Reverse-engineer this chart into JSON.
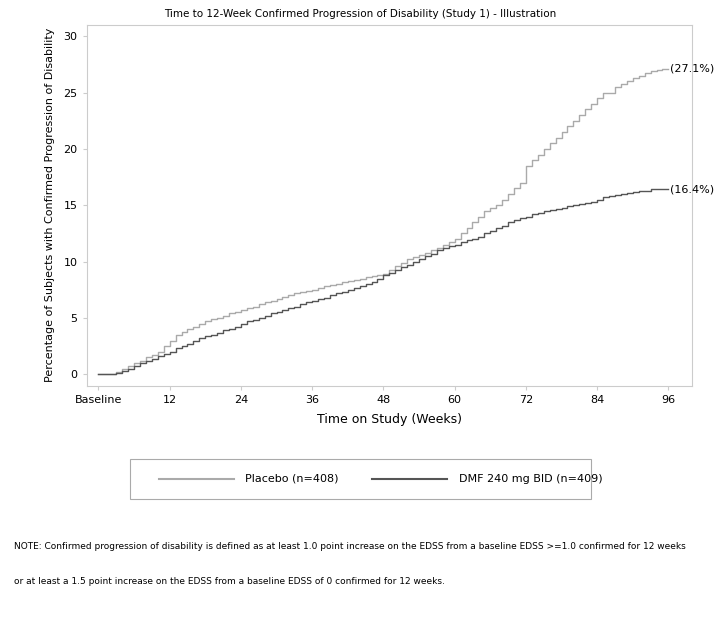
{
  "title": "Time to 12-Week Confirmed Progression of Disability (Study 1) - Illustration",
  "xlabel": "Time on Study (Weeks)",
  "ylabel": "Percentage of Subjects with Confirmed Progression of Disability",
  "xlim": [
    -2,
    100
  ],
  "ylim": [
    -1,
    31
  ],
  "yticks": [
    0,
    5,
    10,
    15,
    20,
    25,
    30
  ],
  "xtick_labels": [
    "Baseline",
    "12",
    "24",
    "36",
    "48",
    "60",
    "72",
    "84",
    "96"
  ],
  "xtick_positions": [
    0,
    12,
    24,
    36,
    48,
    60,
    72,
    84,
    96
  ],
  "placebo_label": "Placebo (n=408)",
  "dmf_label": "DMF 240 mg BID (n=409)",
  "placebo_final": "(27.1%)",
  "dmf_final": "(16.4%)",
  "placebo_color": "#aaaaaa",
  "dmf_color": "#555555",
  "note_line1": "NOTE: Confirmed progression of disability is defined as at least 1.0 point increase on the EDSS from a baseline EDSS >=1.0 confirmed for 12 weeks",
  "note_line2": "or at least a 1.5 point increase on the EDSS from a baseline EDSS of 0 confirmed for 12 weeks.",
  "placebo_x": [
    0,
    2,
    3,
    4,
    5,
    6,
    7,
    8,
    9,
    10,
    11,
    12,
    13,
    14,
    15,
    16,
    17,
    18,
    19,
    20,
    21,
    22,
    23,
    24,
    25,
    26,
    27,
    28,
    29,
    30,
    31,
    32,
    33,
    34,
    35,
    36,
    37,
    38,
    39,
    40,
    41,
    42,
    43,
    44,
    45,
    46,
    47,
    48,
    49,
    50,
    51,
    52,
    53,
    54,
    55,
    56,
    57,
    58,
    59,
    60,
    61,
    62,
    63,
    64,
    65,
    66,
    67,
    68,
    69,
    70,
    71,
    72,
    73,
    74,
    75,
    76,
    77,
    78,
    79,
    80,
    81,
    82,
    83,
    84,
    85,
    86,
    87,
    88,
    89,
    90,
    91,
    92,
    93,
    94,
    95,
    96
  ],
  "placebo_y": [
    0,
    0,
    0.2,
    0.5,
    0.7,
    1.0,
    1.2,
    1.5,
    1.7,
    2.0,
    2.5,
    3.0,
    3.5,
    3.8,
    4.0,
    4.2,
    4.5,
    4.7,
    4.9,
    5.0,
    5.2,
    5.4,
    5.5,
    5.7,
    5.9,
    6.0,
    6.2,
    6.4,
    6.5,
    6.7,
    6.9,
    7.0,
    7.2,
    7.3,
    7.4,
    7.5,
    7.7,
    7.8,
    7.9,
    8.0,
    8.2,
    8.3,
    8.4,
    8.5,
    8.6,
    8.7,
    8.8,
    8.9,
    9.3,
    9.6,
    9.9,
    10.2,
    10.4,
    10.6,
    10.8,
    11.0,
    11.2,
    11.5,
    11.7,
    12.0,
    12.5,
    13.0,
    13.5,
    14.0,
    14.5,
    14.8,
    15.0,
    15.5,
    16.0,
    16.5,
    17.0,
    18.5,
    19.0,
    19.5,
    20.0,
    20.5,
    21.0,
    21.5,
    22.0,
    22.5,
    23.0,
    23.5,
    24.0,
    24.5,
    25.0,
    25.0,
    25.5,
    25.8,
    26.0,
    26.3,
    26.5,
    26.7,
    26.9,
    27.0,
    27.1,
    27.1
  ],
  "dmf_x": [
    0,
    2,
    3,
    4,
    5,
    6,
    7,
    8,
    9,
    10,
    11,
    12,
    13,
    14,
    15,
    16,
    17,
    18,
    19,
    20,
    21,
    22,
    23,
    24,
    25,
    26,
    27,
    28,
    29,
    30,
    31,
    32,
    33,
    34,
    35,
    36,
    37,
    38,
    39,
    40,
    41,
    42,
    43,
    44,
    45,
    46,
    47,
    48,
    49,
    50,
    51,
    52,
    53,
    54,
    55,
    56,
    57,
    58,
    59,
    60,
    61,
    62,
    63,
    64,
    65,
    66,
    67,
    68,
    69,
    70,
    71,
    72,
    73,
    74,
    75,
    76,
    77,
    78,
    79,
    80,
    81,
    82,
    83,
    84,
    85,
    86,
    87,
    88,
    89,
    90,
    91,
    92,
    93,
    94,
    95,
    96
  ],
  "dmf_y": [
    0,
    0,
    0.1,
    0.3,
    0.5,
    0.7,
    1.0,
    1.2,
    1.4,
    1.6,
    1.8,
    2.0,
    2.3,
    2.5,
    2.7,
    3.0,
    3.2,
    3.4,
    3.5,
    3.7,
    3.9,
    4.0,
    4.2,
    4.5,
    4.7,
    4.8,
    5.0,
    5.2,
    5.4,
    5.5,
    5.7,
    5.9,
    6.0,
    6.2,
    6.4,
    6.5,
    6.7,
    6.8,
    7.0,
    7.2,
    7.3,
    7.5,
    7.7,
    7.8,
    8.0,
    8.2,
    8.5,
    8.8,
    9.0,
    9.3,
    9.5,
    9.7,
    10.0,
    10.2,
    10.5,
    10.7,
    11.0,
    11.2,
    11.4,
    11.5,
    11.7,
    11.9,
    12.0,
    12.2,
    12.5,
    12.7,
    13.0,
    13.2,
    13.5,
    13.7,
    13.9,
    14.0,
    14.2,
    14.3,
    14.5,
    14.6,
    14.7,
    14.8,
    14.9,
    15.0,
    15.1,
    15.2,
    15.3,
    15.5,
    15.7,
    15.8,
    15.9,
    16.0,
    16.1,
    16.2,
    16.3,
    16.3,
    16.4,
    16.4,
    16.4,
    16.4
  ]
}
